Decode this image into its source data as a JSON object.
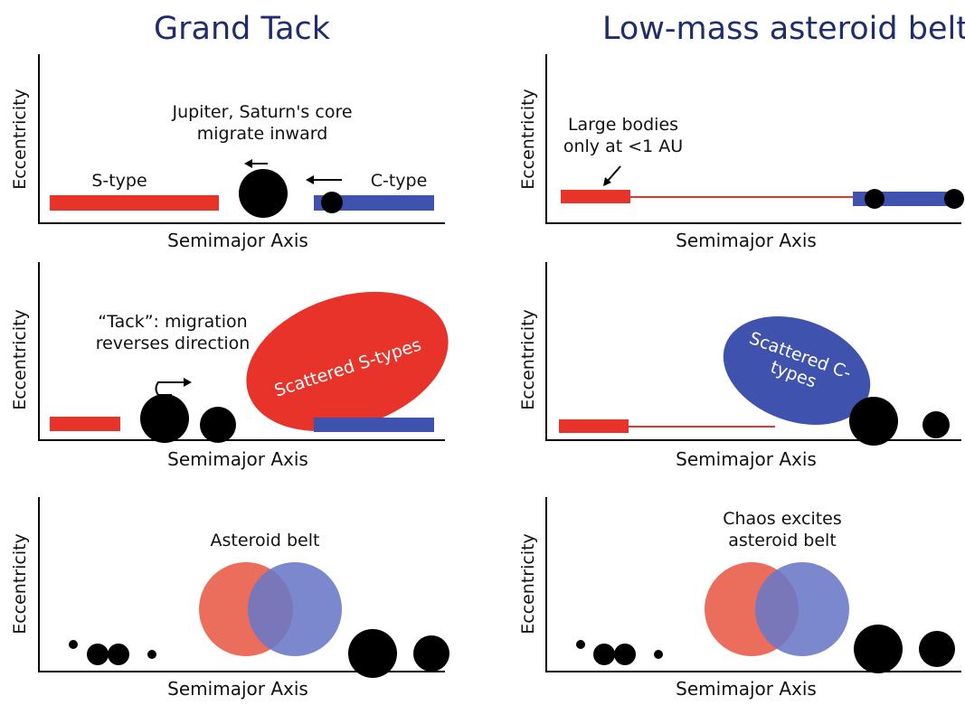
{
  "left_title": "Grand Tack",
  "right_title": "Low-mass asteroid belt",
  "axis": {
    "y": "Eccentricity",
    "x": "Semimajor Axis"
  },
  "colors": {
    "s_type": "#e8332b",
    "c_type": "#3f52ad",
    "planet": "#000000",
    "title": "#1f2d6b",
    "venn_red": "#eb6d5c",
    "venn_blue": "#6a78c7"
  },
  "panels": {
    "gt1": {
      "jupiter_line1": "Jupiter, Saturn's core",
      "jupiter_line2": "migrate inward",
      "s_type": "S-type",
      "c_type": "C-type"
    },
    "gt2": {
      "tack_line1": "“Tack”: migration",
      "tack_line2": "reverses direction",
      "scattered": "Scattered S-types"
    },
    "gt3": {
      "belt": "Asteroid belt"
    },
    "lm1": {
      "large_line1": "Large bodies",
      "large_line2": "only at <1 AU"
    },
    "lm2": {
      "scattered_line1": "Scattered C-",
      "scattered_line2": "types"
    },
    "lm3": {
      "chaos_line1": "Chaos excites",
      "chaos_line2": "asteroid belt"
    }
  }
}
